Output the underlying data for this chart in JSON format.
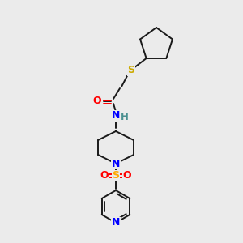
{
  "background_color": "#ebebeb",
  "bond_color": "#1a1a1a",
  "atom_colors": {
    "O": "#ff0000",
    "N": "#0000ff",
    "S_thio": "#ccaa00",
    "S_sulfonyl": "#ffaa00",
    "H": "#4a9090",
    "C": "#1a1a1a"
  },
  "figsize": [
    3.0,
    3.0
  ],
  "dpi": 100,
  "bond_lw": 1.4,
  "font_size_atom": 8.5
}
